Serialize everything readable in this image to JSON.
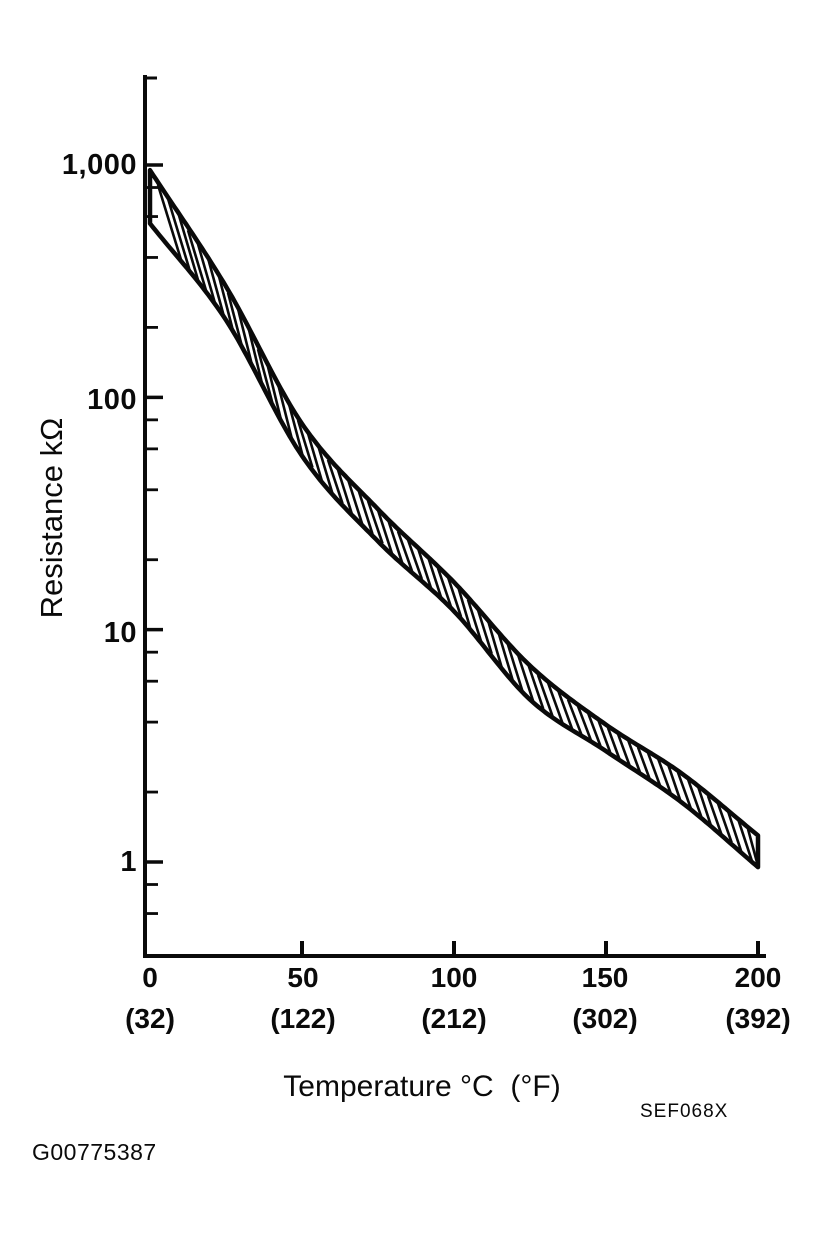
{
  "chart_data": {
    "type": "area",
    "title": "",
    "description": "Thermistor characteristic: hatched acceptable band of resistance versus temperature on a logarithmic scale",
    "x_axis": {
      "label": "Temperature °C  (°F)",
      "range_c": [
        0,
        200
      ],
      "tick_values_c": [
        0,
        50,
        100,
        150,
        200
      ],
      "tick_labels_c": [
        "0",
        "50",
        "100",
        "150",
        "200"
      ],
      "tick_labels_f": [
        "(32)",
        "(122)",
        "(212)",
        "(302)",
        "(392)"
      ]
    },
    "y_axis": {
      "label": "Resistance kΩ",
      "scale": "log",
      "range": [
        0.55,
        2400
      ],
      "tick_values": [
        1000,
        100,
        10,
        1
      ],
      "tick_labels": [
        "1,000",
        "100",
        "10",
        "1"
      ],
      "minor_tick_values": [
        800,
        600,
        400,
        200,
        80,
        60,
        40,
        20,
        8,
        6,
        4,
        2,
        0.8,
        0.6
      ]
    },
    "series": [
      {
        "name": "upper-limit",
        "x_c": [
          0,
          25,
          50,
          75,
          100,
          125,
          150,
          175,
          200
        ],
        "resistance_kohm": [
          950,
          300,
          77,
          33,
          16,
          7.0,
          3.9,
          2.4,
          1.3
        ]
      },
      {
        "name": "lower-limit",
        "x_c": [
          0,
          25,
          50,
          75,
          100,
          125,
          150,
          175,
          200
        ],
        "resistance_kohm": [
          560,
          215,
          56,
          24,
          12,
          5.0,
          3.0,
          1.8,
          0.95
        ]
      }
    ],
    "band_style": "vertical-hatched",
    "ink_color": "#0a0a0a",
    "grid": false,
    "legend": false
  },
  "labels": {
    "x_axis_title": "Temperature °C  (°F)",
    "y_axis_title": "Resistance kΩ",
    "figure_code": "SEF068X",
    "document_id": "G00775387"
  }
}
